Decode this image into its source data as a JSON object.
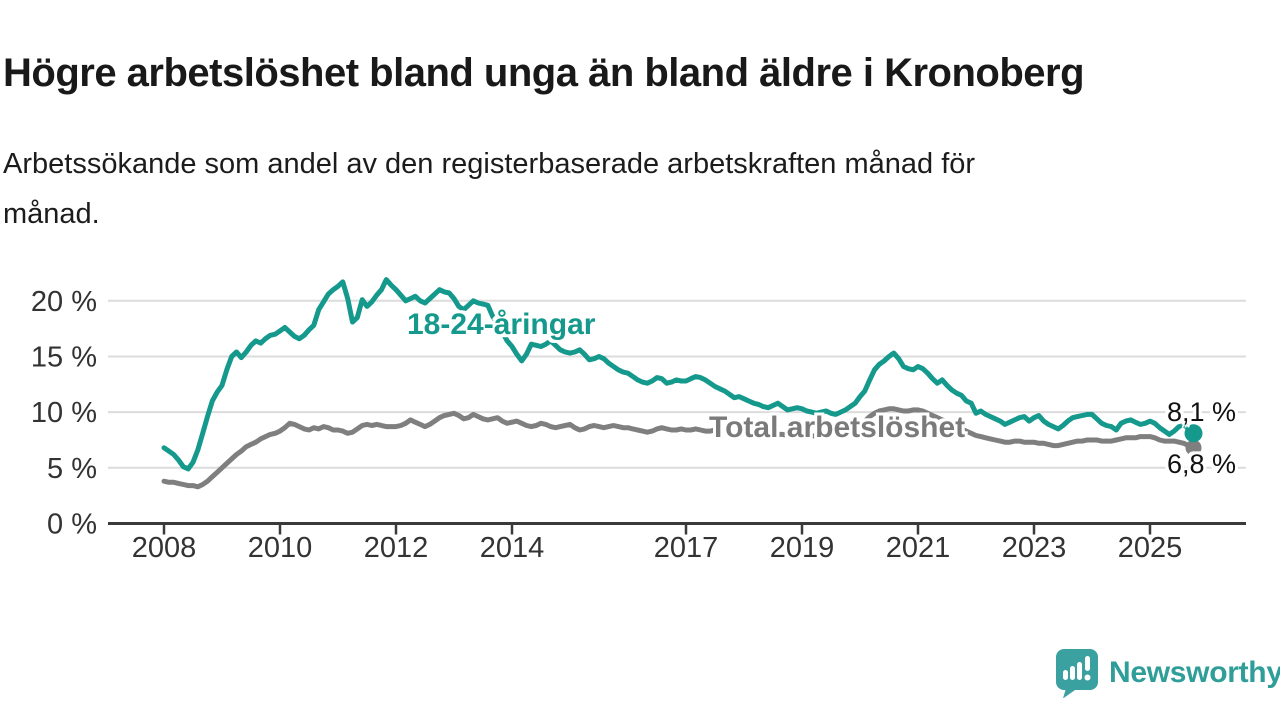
{
  "title": "Högre arbetslöshet bland unga än bland äldre i Kronoberg",
  "subtitle": "Arbetssökande som andel av den registerbaserade arbetskraften månad för månad.",
  "chart_data": {
    "type": "line",
    "title": "Högre arbetslöshet bland unga än bland äldre i Kronoberg",
    "xlabel": "",
    "ylabel": "Arbetssökande som andel av den registerbaserade arbetskraften",
    "x_unit": "month",
    "x_start": "2008-01",
    "x_end": "2025-10",
    "ylim": [
      0,
      22.5
    ],
    "grid": "horizontal",
    "legend_position": "inline-labels",
    "y_ticks": [
      0,
      5,
      10,
      15,
      20
    ],
    "y_tick_labels": [
      "0 %",
      "5 %",
      "10 %",
      "15 %",
      "20 %"
    ],
    "x_ticks": [
      2008,
      2010,
      2012,
      2014,
      2017,
      2019,
      2021,
      2023,
      2025
    ],
    "x_tick_labels": [
      "2008",
      "2010",
      "2012",
      "2014",
      "2017",
      "2019",
      "2021",
      "2023",
      "2025"
    ],
    "series": [
      {
        "name": "18-24-åringar",
        "label": "18-24-åringar",
        "end_label": "8,1 %",
        "end_value": 8.1,
        "color": "#14998c",
        "values": [
          6.8,
          6.5,
          6.2,
          5.7,
          5.1,
          4.9,
          5.5,
          6.6,
          8.1,
          9.6,
          11.0,
          11.8,
          12.4,
          13.8,
          15.0,
          15.4,
          14.9,
          15.4,
          16.0,
          16.4,
          16.2,
          16.6,
          16.9,
          17.0,
          17.3,
          17.6,
          17.2,
          16.8,
          16.6,
          16.9,
          17.4,
          17.8,
          19.2,
          19.9,
          20.6,
          21.0,
          21.3,
          21.7,
          20.2,
          18.1,
          18.5,
          20.1,
          19.5,
          19.9,
          20.5,
          21.0,
          21.9,
          21.4,
          21.0,
          20.5,
          20.0,
          20.2,
          20.4,
          20.0,
          19.8,
          20.2,
          20.6,
          21.0,
          20.8,
          20.7,
          20.2,
          19.5,
          19.2,
          19.6,
          20.0,
          19.8,
          19.7,
          19.6,
          18.6,
          18.0,
          17.2,
          16.4,
          15.9,
          15.2,
          14.6,
          15.2,
          16.1,
          16.0,
          15.9,
          16.1,
          16.4,
          16.0,
          15.6,
          15.4,
          15.3,
          15.4,
          15.6,
          15.2,
          14.7,
          14.8,
          15.0,
          14.8,
          14.4,
          14.1,
          13.8,
          13.6,
          13.5,
          13.2,
          12.9,
          12.7,
          12.6,
          12.8,
          13.1,
          13.0,
          12.6,
          12.7,
          12.9,
          12.8,
          12.8,
          13.0,
          13.2,
          13.1,
          12.9,
          12.6,
          12.3,
          12.1,
          11.9,
          11.6,
          11.3,
          11.4,
          11.2,
          11.0,
          10.8,
          10.7,
          10.5,
          10.4,
          10.6,
          10.8,
          10.5,
          10.2,
          10.3,
          10.4,
          10.3,
          10.1,
          10.0,
          9.9,
          10.0,
          10.1,
          9.9,
          9.8,
          10.0,
          10.2,
          10.5,
          10.8,
          11.4,
          11.9,
          12.9,
          13.8,
          14.3,
          14.6,
          15.0,
          15.3,
          14.8,
          14.1,
          13.9,
          13.8,
          14.1,
          13.9,
          13.5,
          13.0,
          12.6,
          12.9,
          12.4,
          12.0,
          11.7,
          11.5,
          11.0,
          10.8,
          9.9,
          10.1,
          9.8,
          9.6,
          9.4,
          9.2,
          8.9,
          9.1,
          9.3,
          9.5,
          9.6,
          9.2,
          9.5,
          9.7,
          9.2,
          8.9,
          8.7,
          8.5,
          8.8,
          9.2,
          9.5,
          9.6,
          9.7,
          9.8,
          9.8,
          9.4,
          9.0,
          8.8,
          8.7,
          8.4,
          9.0,
          9.2,
          9.3,
          9.1,
          8.9,
          9.0,
          9.2,
          9.0,
          8.6,
          8.3,
          8.0,
          8.3,
          8.7,
          8.9,
          8.5,
          8.1
        ]
      },
      {
        "name": "Total arbetslöshet",
        "label": "Total arbetslöshet",
        "end_label": "6,8 %",
        "end_value": 6.8,
        "color": "#7f7f7f",
        "values": [
          3.8,
          3.7,
          3.7,
          3.6,
          3.5,
          3.4,
          3.4,
          3.3,
          3.5,
          3.8,
          4.2,
          4.6,
          5.0,
          5.4,
          5.8,
          6.2,
          6.5,
          6.9,
          7.1,
          7.3,
          7.6,
          7.8,
          8.0,
          8.1,
          8.3,
          8.6,
          9.0,
          8.9,
          8.7,
          8.5,
          8.4,
          8.6,
          8.5,
          8.7,
          8.6,
          8.4,
          8.4,
          8.3,
          8.1,
          8.2,
          8.5,
          8.8,
          8.9,
          8.8,
          8.9,
          8.8,
          8.7,
          8.7,
          8.7,
          8.8,
          9.0,
          9.3,
          9.1,
          8.9,
          8.7,
          8.9,
          9.2,
          9.5,
          9.7,
          9.8,
          9.9,
          9.7,
          9.4,
          9.5,
          9.8,
          9.6,
          9.4,
          9.3,
          9.4,
          9.5,
          9.2,
          9.0,
          9.1,
          9.2,
          9.0,
          8.8,
          8.7,
          8.8,
          9.0,
          8.9,
          8.7,
          8.6,
          8.7,
          8.8,
          8.9,
          8.6,
          8.4,
          8.5,
          8.7,
          8.8,
          8.7,
          8.6,
          8.7,
          8.8,
          8.7,
          8.6,
          8.6,
          8.5,
          8.4,
          8.3,
          8.2,
          8.3,
          8.5,
          8.6,
          8.5,
          8.4,
          8.4,
          8.5,
          8.4,
          8.4,
          8.5,
          8.4,
          8.3,
          8.3,
          8.4,
          8.4,
          8.3,
          8.2,
          8.2,
          8.2,
          8.1,
          8.0,
          8.0,
          7.9,
          7.9,
          7.8,
          7.9,
          8.0,
          8.0,
          7.9,
          7.9,
          8.0,
          8.0,
          7.9,
          7.9,
          7.8,
          7.8,
          7.9,
          8.0,
          8.1,
          8.2,
          8.3,
          8.5,
          8.7,
          8.9,
          9.2,
          9.6,
          9.9,
          10.1,
          10.2,
          10.3,
          10.3,
          10.2,
          10.1,
          10.1,
          10.2,
          10.2,
          10.1,
          9.9,
          9.7,
          9.5,
          9.3,
          9.1,
          8.9,
          8.7,
          8.5,
          8.3,
          8.1,
          7.9,
          7.8,
          7.7,
          7.6,
          7.5,
          7.4,
          7.3,
          7.3,
          7.4,
          7.4,
          7.3,
          7.3,
          7.3,
          7.2,
          7.2,
          7.1,
          7.0,
          7.0,
          7.1,
          7.2,
          7.3,
          7.4,
          7.4,
          7.5,
          7.5,
          7.5,
          7.4,
          7.4,
          7.4,
          7.5,
          7.6,
          7.7,
          7.7,
          7.7,
          7.8,
          7.8,
          7.8,
          7.7,
          7.5,
          7.4,
          7.4,
          7.4,
          7.3,
          7.2,
          7.0,
          6.8
        ]
      }
    ],
    "colors": {
      "young_series": "#14998c",
      "total_series": "#7f7f7f",
      "grid": "#dcdcdc",
      "axis": "#3a3a3a",
      "tick_text": "#333333"
    }
  },
  "branding": {
    "logo_text": "Newsworthy",
    "logo_color": "#3aa0a0",
    "logo_icon": "bar-chart-speech-bubble"
  }
}
